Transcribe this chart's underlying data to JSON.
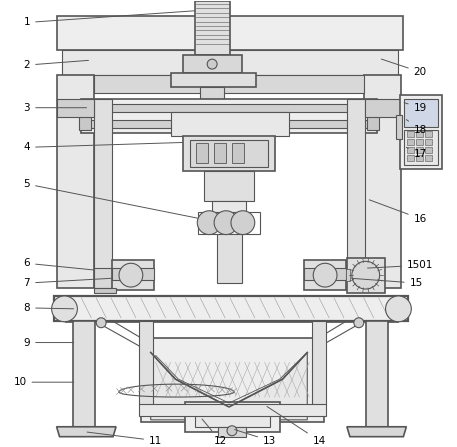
{
  "background_color": "#ffffff",
  "line_color": "#555555",
  "label_color": "#000000",
  "figsize": [
    4.57,
    4.47
  ],
  "dpi": 100
}
